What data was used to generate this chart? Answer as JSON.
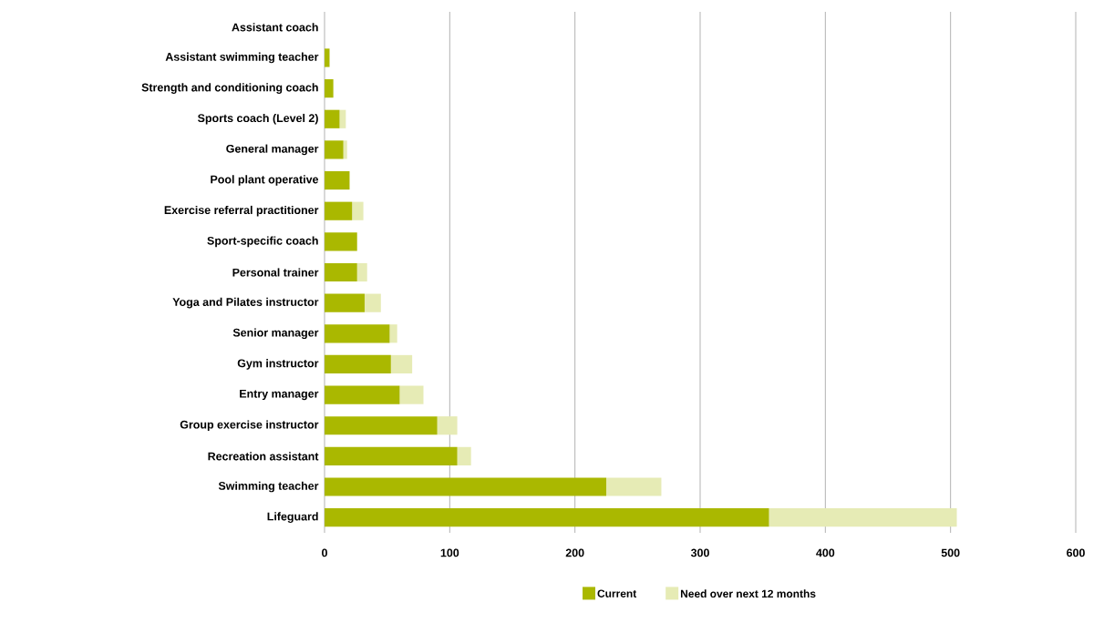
{
  "chart_data": {
    "type": "bar",
    "orientation": "horizontal",
    "stacked": true,
    "categories": [
      "Assistant coach",
      "Assistant swimming teacher",
      "Strength and conditioning coach",
      "Sports coach (Level 2)",
      "General manager",
      "Pool plant operative",
      "Exercise referral practitioner",
      "Sport-specific coach",
      "Personal trainer",
      "Yoga and Pilates instructor",
      "Senior manager",
      "Gym instructor",
      "Entry manager",
      "Group exercise instructor",
      "Recreation assistant",
      "Swimming teacher",
      "Lifeguard"
    ],
    "series": [
      {
        "name": "Current",
        "color": "#aab800",
        "values": [
          0,
          4,
          7,
          12,
          15,
          20,
          22,
          26,
          26,
          32,
          52,
          53,
          60,
          90,
          106,
          225,
          355
        ]
      },
      {
        "name": "Need over next 12 months",
        "color": "#e6ebb5",
        "values": [
          0,
          0,
          0,
          5,
          3,
          0,
          9,
          0,
          8,
          13,
          6,
          17,
          19,
          16,
          11,
          44,
          150
        ]
      }
    ],
    "xlim": [
      0,
      600
    ],
    "xticks": [
      0,
      100,
      200,
      300,
      400,
      500,
      600
    ],
    "grid": "x",
    "legend": "bottom"
  }
}
